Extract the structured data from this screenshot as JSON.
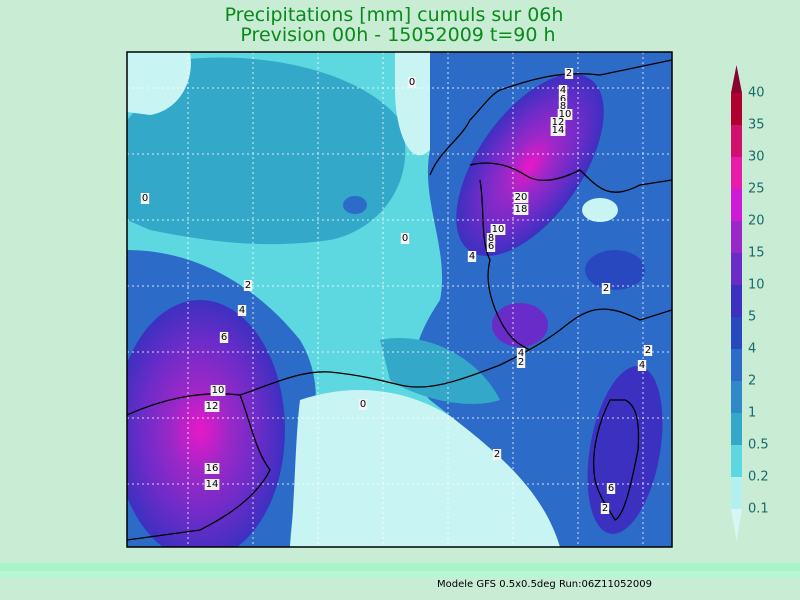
{
  "title": {
    "line1": "Precipitations [mm] cumuls sur 06h",
    "line2": "Prevision 00h - 15052009 t=90 h"
  },
  "legend": {
    "below_color": "#d8f6f6",
    "above_color": "#8a0030",
    "levels": [
      {
        "label": "0.1",
        "color": "#b4f0f0"
      },
      {
        "label": "0.2",
        "color": "#5ed8e0"
      },
      {
        "label": "0.5",
        "color": "#34a8c8"
      },
      {
        "label": "1",
        "color": "#3088c8"
      },
      {
        "label": "2",
        "color": "#2c6cc8"
      },
      {
        "label": "4",
        "color": "#2848c0"
      },
      {
        "label": "5",
        "color": "#3c30c0"
      },
      {
        "label": "10",
        "color": "#6a2cc8"
      },
      {
        "label": "15",
        "color": "#9a28c8"
      },
      {
        "label": "20",
        "color": "#d018d8"
      },
      {
        "label": "25",
        "color": "#e81ca8"
      },
      {
        "label": "30",
        "color": "#d0106c"
      },
      {
        "label": "35",
        "color": "#b00030"
      },
      {
        "label": "40",
        "color": "#8a0030"
      }
    ]
  },
  "contour_labels": [
    "2",
    "4",
    "6",
    "8",
    "10",
    "12",
    "14",
    "0",
    "0",
    "20",
    "18",
    "10",
    "8",
    "6",
    "4",
    "0",
    "2",
    "4",
    "6",
    "2",
    "4",
    "2",
    "2",
    "4",
    "10",
    "12",
    "0",
    "2",
    "16",
    "14",
    "6",
    "2"
  ],
  "footer": "Modele GFS 0.5x0.5deg Run:06Z11052009"
}
